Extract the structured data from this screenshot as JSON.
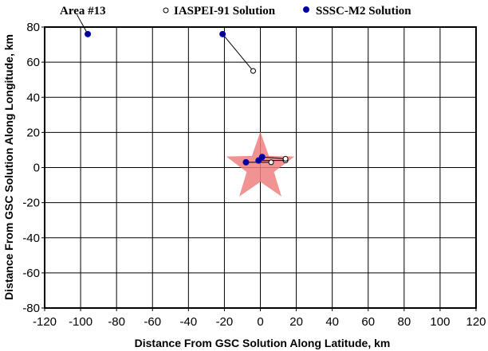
{
  "chart_data": {
    "type": "scatter",
    "title": "Area #13",
    "xlabel": "Distance From GSC Solution Along Latitude, km",
    "ylabel": "Distance From GSC Solution Along Longitude, km",
    "xlim": [
      -120,
      120
    ],
    "ylim": [
      -80,
      80
    ],
    "x_ticks": [
      -120,
      -100,
      -80,
      -60,
      -40,
      -20,
      0,
      20,
      40,
      60,
      80,
      100,
      120
    ],
    "y_ticks": [
      -80,
      -60,
      -40,
      -20,
      0,
      20,
      40,
      60,
      80
    ],
    "grid": true,
    "legend_position": "top",
    "reference_marker": {
      "symbol": "star",
      "x": 0,
      "y": 0,
      "color": "#f08080"
    },
    "series": [
      {
        "name": "IASPEI-91 Solution",
        "marker": "open-circle",
        "color": "#000000",
        "x": [
          -4,
          6,
          14,
          14
        ],
        "y": [
          55,
          3,
          4,
          5
        ]
      },
      {
        "name": "SSSC-M2 Solution",
        "marker": "filled-circle",
        "color": "#00008b",
        "x": [
          -96,
          -21,
          -8,
          -1,
          1
        ],
        "y": [
          76,
          76,
          3,
          4,
          6
        ]
      }
    ],
    "connector_lines": [
      {
        "from": [
          -21,
          76
        ],
        "to": [
          -4,
          55
        ]
      },
      {
        "from": [
          -8,
          3
        ],
        "to": [
          6,
          3
        ]
      },
      {
        "from": [
          -1,
          4
        ],
        "to": [
          14,
          4
        ]
      },
      {
        "from": [
          1,
          6
        ],
        "to": [
          14,
          5
        ]
      },
      {
        "from": [
          -96,
          76
        ],
        "to": [
          -102,
          87
        ]
      }
    ]
  }
}
